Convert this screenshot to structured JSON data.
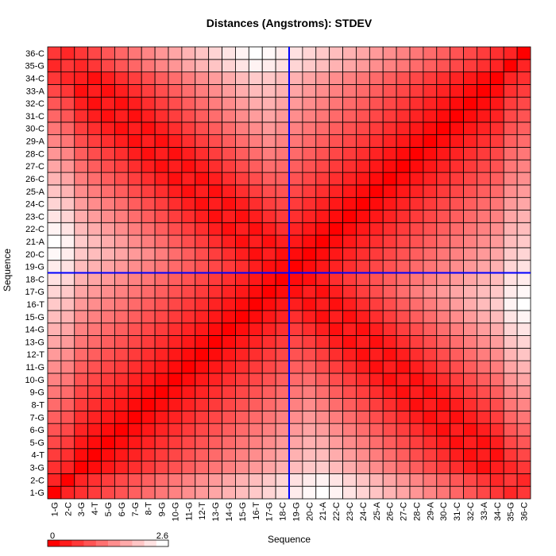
{
  "chart_data": {
    "type": "heatmap",
    "title": "Distances (Angstroms):  STDEV",
    "xlabel": "Sequence",
    "ylabel": "Sequence",
    "labels": [
      "1-G",
      "2-C",
      "3-G",
      "4-T",
      "5-G",
      "6-G",
      "7-G",
      "8-T",
      "9-G",
      "10-G",
      "11-G",
      "12-T",
      "13-G",
      "14-G",
      "15-G",
      "16-T",
      "17-G",
      "18-C",
      "19-G",
      "20-C",
      "21-A",
      "22-C",
      "23-C",
      "24-C",
      "25-A",
      "26-C",
      "27-C",
      "28-C",
      "29-A",
      "30-C",
      "31-C",
      "32-C",
      "33-A",
      "34-C",
      "35-G",
      "36-C"
    ],
    "value_range": [
      0,
      2.6
    ],
    "colorbar": {
      "min_label": "0",
      "max_label": "2.6",
      "low_color": "#ff0000",
      "high_color": "#ffffff"
    },
    "colorbar_steps": 10,
    "grid_color": "#000000",
    "crosshair": {
      "color": "#0000ff",
      "x": "18-C",
      "y": "18-C"
    },
    "matrix_rule": {
      "diagonal": 0,
      "arms": [
        "i+j=36",
        "i+j=38",
        "i+j=74"
      ],
      "diagonal_falloff_per_step": 0.12,
      "arm_falloff_per_step": 0.16,
      "max": 2.6
    }
  }
}
